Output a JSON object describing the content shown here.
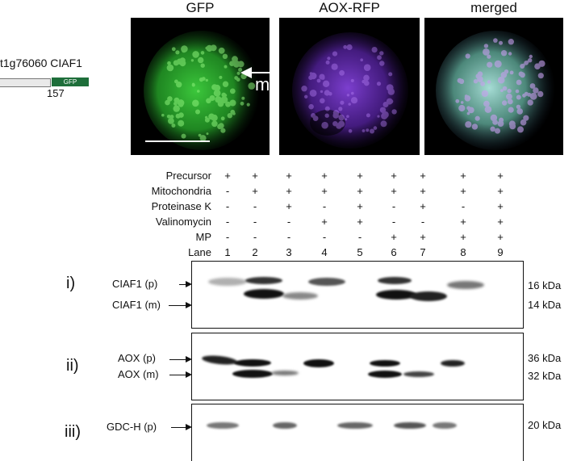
{
  "construct": {
    "gene_label": "t1g76060 CIAF1",
    "gfp_label": "GFP",
    "position_label": "157",
    "colors": {
      "gfp": "#1e6e3a",
      "bar": "#e9e9e9"
    }
  },
  "microscopy": {
    "panels": [
      {
        "title": "GFP",
        "type": "gfp"
      },
      {
        "title": "AOX-RFP",
        "type": "rfp"
      },
      {
        "title": "merged",
        "type": "merged"
      }
    ],
    "arrow_label": "m",
    "colors": {
      "gfp": "#32c832",
      "rfp": "#7a3ad8",
      "merged": "#9fe0e0"
    }
  },
  "conditions": {
    "rows": [
      {
        "label": "Precursor",
        "marks": [
          "+",
          "+",
          "+",
          "+",
          "+",
          "+",
          "+",
          "+",
          "+"
        ]
      },
      {
        "label": "Mitochondria",
        "marks": [
          "-",
          "+",
          "+",
          "+",
          "+",
          "+",
          "+",
          "+",
          "+"
        ]
      },
      {
        "label": "Proteinase K",
        "marks": [
          "-",
          "-",
          "+",
          "-",
          "+",
          "-",
          "+",
          "-",
          "+"
        ]
      },
      {
        "label": "Valinomycin",
        "marks": [
          "-",
          "-",
          "-",
          "+",
          "+",
          "-",
          "-",
          "+",
          "+"
        ]
      },
      {
        "label": "MP",
        "marks": [
          "-",
          "-",
          "-",
          "-",
          "-",
          "+",
          "+",
          "+",
          "+"
        ]
      }
    ],
    "lane_label": "Lane",
    "lanes": [
      "1",
      "2",
      "3",
      "4",
      "5",
      "6",
      "7",
      "8",
      "9"
    ]
  },
  "blots": [
    {
      "numeral": "i)",
      "labels": [
        "CIAF1 (p)",
        "CIAF1 (m)"
      ],
      "kda": [
        "16 kDa",
        "14 kDa"
      ]
    },
    {
      "numeral": "ii)",
      "labels": [
        "AOX (p)",
        "AOX (m)"
      ],
      "kda": [
        "36 kDa",
        "32 kDa"
      ]
    },
    {
      "numeral": "iii)",
      "labels": [
        "GDC-H (p)"
      ],
      "kda": [
        "20 kDa"
      ]
    }
  ]
}
